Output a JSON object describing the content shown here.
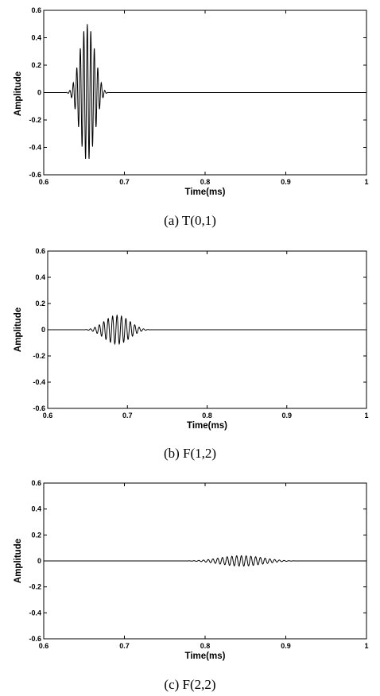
{
  "chart_data": [
    {
      "type": "line",
      "caption": "(a)  T(0,1)",
      "xlabel": "Time(ms)",
      "ylabel": "Amplitude",
      "xlim": [
        0.6,
        1.0
      ],
      "ylim": [
        -0.6,
        0.6
      ],
      "xticks": [
        "0.6",
        "0.7",
        "0.8",
        "0.9",
        "1"
      ],
      "yticks": [
        "0.6",
        "0.4",
        "0.2",
        "0",
        "-0.2",
        "-0.4",
        "-0.6"
      ],
      "grid": false,
      "series": [
        {
          "center_ms": 0.654,
          "half_width_ms": 0.03,
          "amplitude": 0.5,
          "frequency_khz": 230
        }
      ]
    },
    {
      "type": "line",
      "caption": "(b)  F(1,2)",
      "xlabel": "Time(ms)",
      "ylabel": "Amplitude",
      "xlim": [
        0.6,
        1.0
      ],
      "ylim": [
        -0.6,
        0.6
      ],
      "xticks": [
        "0.6",
        "0.7",
        "0.8",
        "0.9",
        "1"
      ],
      "yticks": [
        "0.6",
        "0.4",
        "0.2",
        "0",
        "-0.2",
        "-0.4",
        "-0.6"
      ],
      "grid": false,
      "series": [
        {
          "center_ms": 0.687,
          "half_width_ms": 0.05,
          "amplitude": 0.11,
          "frequency_khz": 180
        }
      ]
    },
    {
      "type": "line",
      "caption": "(c)  F(2,2)",
      "xlabel": "Time(ms)",
      "ylabel": "Amplitude",
      "xlim": [
        0.6,
        1.0
      ],
      "ylim": [
        -0.6,
        0.6
      ],
      "xticks": [
        "0.6",
        "0.7",
        "0.8",
        "0.9",
        "1"
      ],
      "yticks": [
        "0.6",
        "0.4",
        "0.2",
        "0",
        "-0.2",
        "-0.4",
        "-0.6"
      ],
      "grid": false,
      "series": [
        {
          "center_ms": 0.845,
          "half_width_ms": 0.085,
          "amplitude": 0.04,
          "frequency_khz": 170
        }
      ]
    }
  ]
}
